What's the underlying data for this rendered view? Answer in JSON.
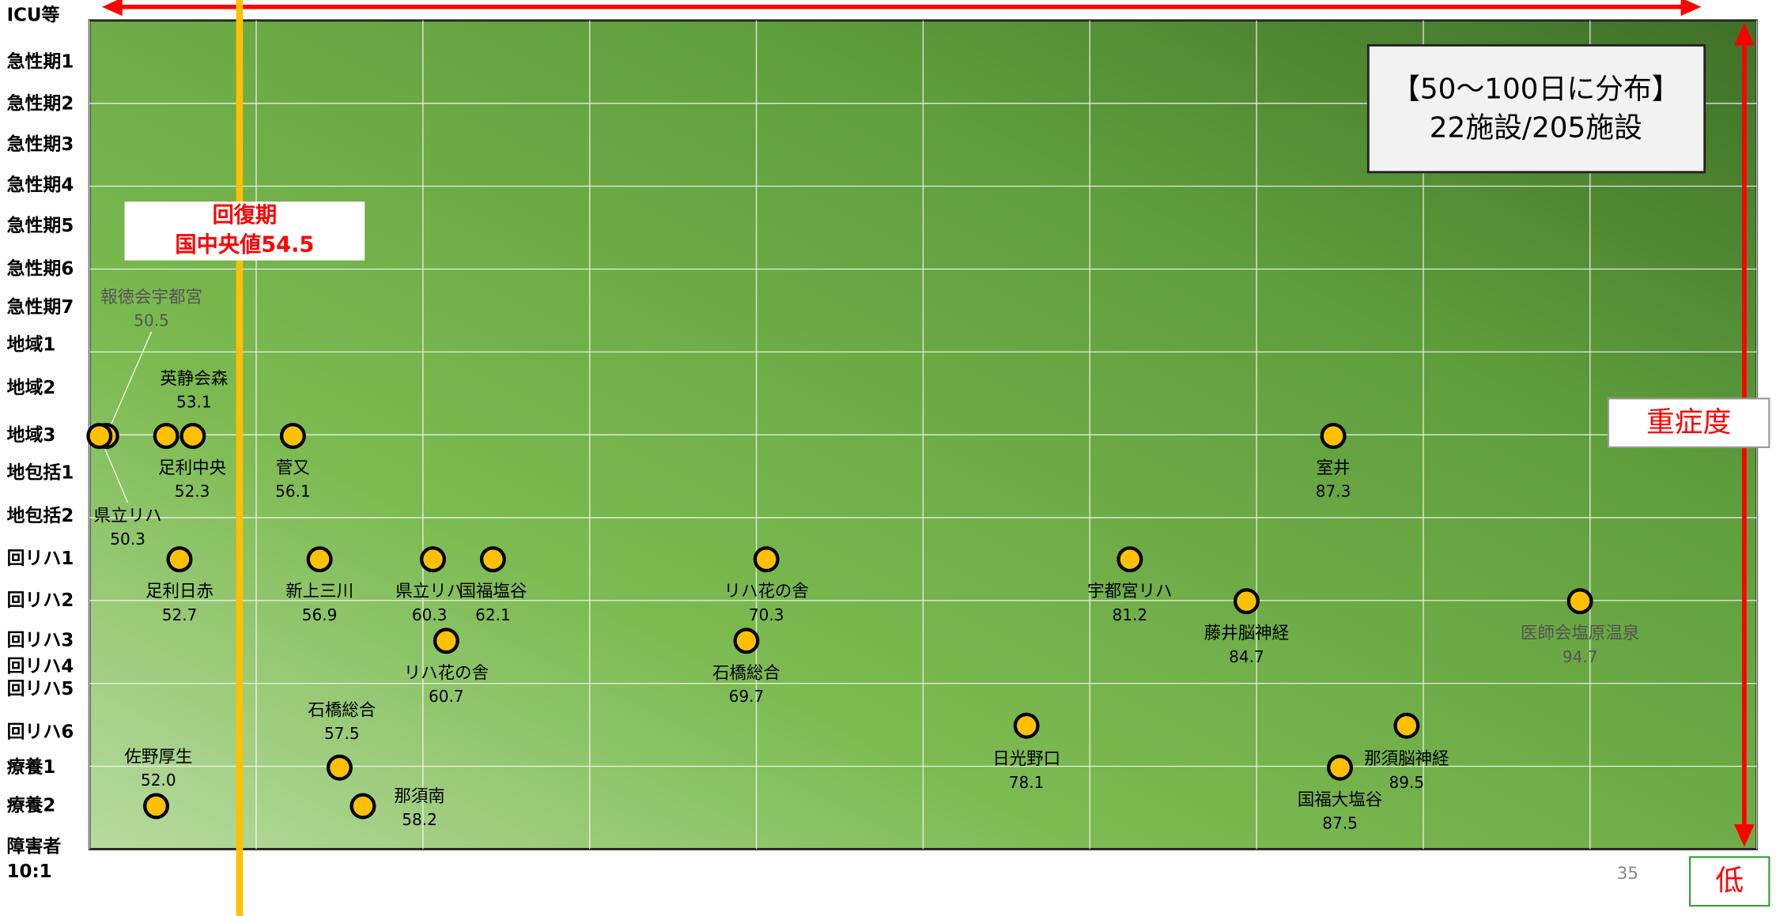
{
  "chart_data": {
    "type": "scatter",
    "title": "【50〜100日に分布】",
    "subtitle": "22施設/205施設",
    "categories": [
      "ICU等",
      "急性期1",
      "急性期2",
      "急性期3",
      "急性期4",
      "急性期5",
      "急性期6",
      "急性期7",
      "地域1",
      "地域2",
      "地域3",
      "地包括1",
      "地包括2",
      "回リハ1",
      "回リハ2",
      "回リハ3",
      "回リハ4",
      "回リハ5",
      "回リハ6",
      "療養1",
      "療養2",
      "障害者 10:1"
    ],
    "xlim": [
      50,
      100
    ],
    "xticks": [
      50,
      55,
      60,
      65,
      70,
      75,
      80,
      85,
      90,
      95,
      100
    ],
    "grid": true,
    "color": "#FFC000",
    "names": [
      "報徳会宇都宮",
      "県立リハ",
      "英静会森",
      "足利中央",
      "菅又",
      "室井",
      "足利日赤",
      "新上三川",
      "県立リハ",
      "国福塩谷",
      "リハ花の舎",
      "宇都宮リハ",
      "藤井脳神経",
      "医師会塩原温泉",
      "リハ花の舎",
      "石橋総合",
      "日光野口",
      "那須脳神経",
      "石橋総合",
      "国福大塩谷",
      "佐野厚生",
      "那須南"
    ],
    "x": [
      50.5,
      50.3,
      53.1,
      52.3,
      56.1,
      87.3,
      52.7,
      56.9,
      60.3,
      62.1,
      70.3,
      81.2,
      84.7,
      94.7,
      60.7,
      69.7,
      78.1,
      89.5,
      57.5,
      87.5,
      52.0,
      58.2
    ],
    "value_labels": [
      "50.5",
      "50.3",
      "53.1",
      "52.3",
      "56.1",
      "87.3",
      "52.7",
      "56.9",
      "60.3",
      "62.1",
      "70.3",
      "81.2",
      "84.7",
      "94.7",
      "60.7",
      "69.7",
      "78.1",
      "89.5",
      "57.5",
      "87.5",
      "52.0",
      "58.2"
    ],
    "rows": [
      "地域3",
      "地域3",
      "地域3",
      "地域3",
      "地域3",
      "地域3",
      "回リハ1",
      "回リハ1",
      "回リハ1",
      "回リハ1",
      "回リハ1",
      "回リハ1",
      "回リハ2",
      "回リハ2",
      "回リハ3",
      "回リハ3",
      "回リハ6",
      "回リハ6",
      "療養1",
      "療養1",
      "療養2",
      "療養2"
    ],
    "median": {
      "value": 54.5,
      "title": "回復期",
      "label": "国中央値54.5"
    },
    "axis_label": "重症度",
    "axis_low": "低",
    "page_number": "35"
  }
}
